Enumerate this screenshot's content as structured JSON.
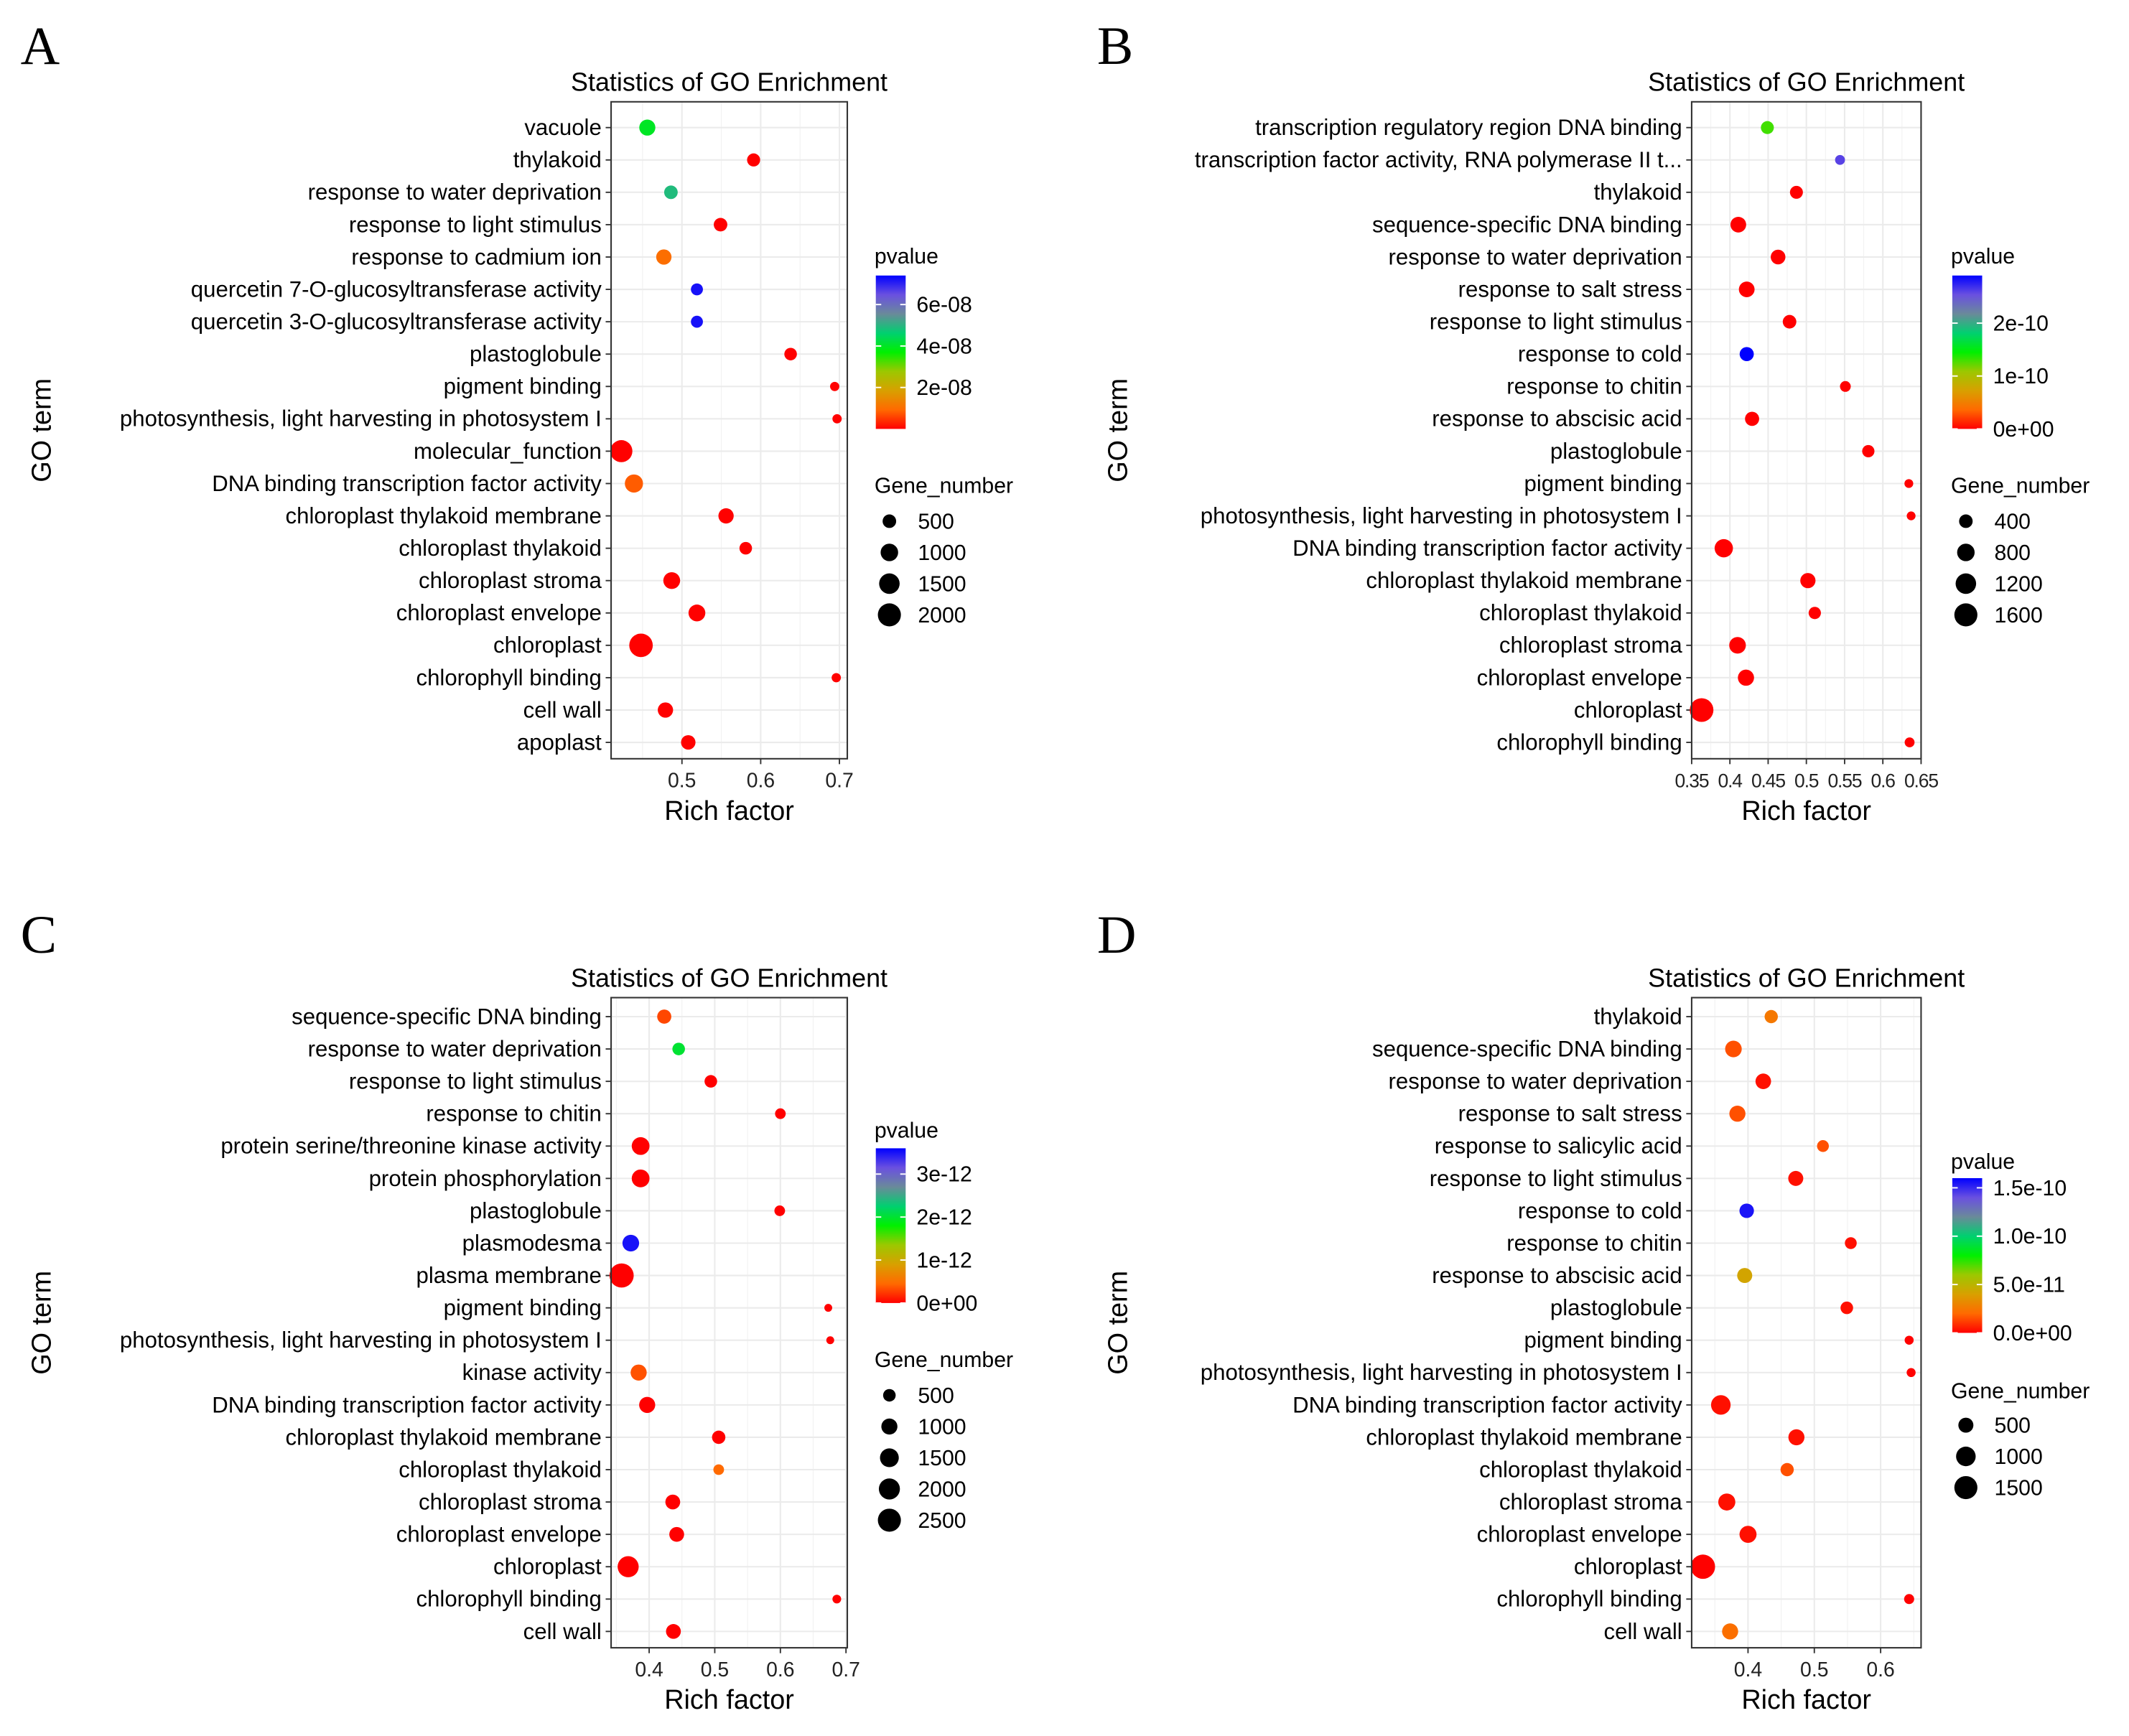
{
  "color_scale": [
    "#FF0000",
    "#FF6A00",
    "#D8A000",
    "#9CC800",
    "#00F000",
    "#00D070",
    "#6A8A9A",
    "#6A50E0",
    "#0000FF"
  ],
  "chart_data": [
    {
      "type": "scatter",
      "panel_label": "A",
      "title": "Statistics of GO Enrichment",
      "xlabel": "Rich factor",
      "ylabel": "GO term",
      "xlim": [
        0.41,
        0.71
      ],
      "xticks": [
        {
          "v": 0.5,
          "label": "0.5"
        },
        {
          "v": 0.6,
          "label": "0.6"
        },
        {
          "v": 0.7,
          "label": "0.7"
        }
      ],
      "grid": true,
      "color_legend": {
        "title": "pvalue",
        "range": [
          0,
          7.4e-08
        ],
        "ticks": [
          {
            "v": 2e-08,
            "label": "2e-08"
          },
          {
            "v": 4e-08,
            "label": "4e-08"
          },
          {
            "v": 6e-08,
            "label": "6e-08"
          }
        ]
      },
      "size_legend": {
        "title": "Gene_number",
        "values": [
          {
            "v": 500,
            "label": "500"
          },
          {
            "v": 1000,
            "label": "1000"
          },
          {
            "v": 1500,
            "label": "1500"
          },
          {
            "v": 2000,
            "label": "2000"
          }
        ]
      },
      "points": [
        {
          "term": "vacuole",
          "x": 0.456,
          "genes": 800,
          "pvalue": 4e-08
        },
        {
          "term": "thylakoid",
          "x": 0.591,
          "genes": 450,
          "pvalue": 1e-10
        },
        {
          "term": "response to water deprivation",
          "x": 0.486,
          "genes": 500,
          "pvalue": 4.9e-08
        },
        {
          "term": "response to light stimulus",
          "x": 0.549,
          "genes": 500,
          "pvalue": 1e-10
        },
        {
          "term": "response to cadmium ion",
          "x": 0.477,
          "genes": 700,
          "pvalue": 1e-08
        },
        {
          "term": "quercetin 7-O-glucosyltransferase activity",
          "x": 0.519,
          "genes": 350,
          "pvalue": 7.2e-08
        },
        {
          "term": "quercetin 3-O-glucosyltransferase activity",
          "x": 0.519,
          "genes": 350,
          "pvalue": 7.2e-08
        },
        {
          "term": "plastoglobule",
          "x": 0.638,
          "genes": 400,
          "pvalue": 1e-10
        },
        {
          "term": "pigment binding",
          "x": 0.694,
          "genes": 150,
          "pvalue": 1e-10
        },
        {
          "term": "photosynthesis, light harvesting in photosystem I",
          "x": 0.697,
          "genes": 150,
          "pvalue": 1e-10
        },
        {
          "term": "molecular_function",
          "x": 0.423,
          "genes": 1800,
          "pvalue": 1e-10
        },
        {
          "term": "DNA binding transcription factor activity",
          "x": 0.439,
          "genes": 1100,
          "pvalue": 8e-09
        },
        {
          "term": "chloroplast thylakoid membrane",
          "x": 0.556,
          "genes": 700,
          "pvalue": 1e-10
        },
        {
          "term": "chloroplast thylakoid",
          "x": 0.581,
          "genes": 400,
          "pvalue": 1e-10
        },
        {
          "term": "chloroplast stroma",
          "x": 0.487,
          "genes": 900,
          "pvalue": 1e-10
        },
        {
          "term": "chloroplast envelope",
          "x": 0.519,
          "genes": 900,
          "pvalue": 1e-10
        },
        {
          "term": "chloroplast",
          "x": 0.448,
          "genes": 2100,
          "pvalue": 1e-10
        },
        {
          "term": "chlorophyll binding",
          "x": 0.696,
          "genes": 150,
          "pvalue": 1e-10
        },
        {
          "term": "cell wall",
          "x": 0.479,
          "genes": 700,
          "pvalue": 1e-10
        },
        {
          "term": "apoplast",
          "x": 0.508,
          "genes": 600,
          "pvalue": 1e-10
        }
      ]
    },
    {
      "type": "scatter",
      "panel_label": "B",
      "title": "Statistics of GO Enrichment",
      "xlabel": "Rich factor",
      "ylabel": "GO term",
      "xlim": [
        0.35,
        0.65
      ],
      "xticks": [
        {
          "v": 0.35,
          "label": "0.35"
        },
        {
          "v": 0.4,
          "label": "0.4"
        },
        {
          "v": 0.45,
          "label": "0.45"
        },
        {
          "v": 0.5,
          "label": "0.5"
        },
        {
          "v": 0.55,
          "label": "0.55"
        },
        {
          "v": 0.6,
          "label": "0.6"
        },
        {
          "v": 0.65,
          "label": "0.65"
        }
      ],
      "grid": true,
      "color_legend": {
        "title": "pvalue",
        "range": [
          0,
          2.9e-10
        ],
        "ticks": [
          {
            "v": 0,
            "label": "0e+00"
          },
          {
            "v": 1e-10,
            "label": "1e-10"
          },
          {
            "v": 2e-10,
            "label": "2e-10"
          }
        ]
      },
      "size_legend": {
        "title": "Gene_number",
        "values": [
          {
            "v": 400,
            "label": "400"
          },
          {
            "v": 800,
            "label": "800"
          },
          {
            "v": 1200,
            "label": "1200"
          },
          {
            "v": 1600,
            "label": "1600"
          }
        ]
      },
      "points": [
        {
          "term": "transcription regulatory region DNA binding",
          "x": 0.449,
          "genes": 350,
          "pvalue": 1.3e-10
        },
        {
          "term": "transcription factor activity, RNA polymerase II t...",
          "x": 0.544,
          "genes": 150,
          "pvalue": 2.6e-10
        },
        {
          "term": "thylakoid",
          "x": 0.487,
          "genes": 350,
          "pvalue": 1e-13
        },
        {
          "term": "sequence-specific DNA binding",
          "x": 0.411,
          "genes": 600,
          "pvalue": 1e-13
        },
        {
          "term": "response to water deprivation",
          "x": 0.463,
          "genes": 500,
          "pvalue": 1e-13
        },
        {
          "term": "response to salt stress",
          "x": 0.422,
          "genes": 600,
          "pvalue": 1e-13
        },
        {
          "term": "response to light stimulus",
          "x": 0.478,
          "genes": 400,
          "pvalue": 1e-13
        },
        {
          "term": "response to cold",
          "x": 0.422,
          "genes": 450,
          "pvalue": 2.9e-10
        },
        {
          "term": "response to chitin",
          "x": 0.551,
          "genes": 200,
          "pvalue": 1e-13
        },
        {
          "term": "response to abscisic acid",
          "x": 0.429,
          "genes": 450,
          "pvalue": 1e-13
        },
        {
          "term": "plastoglobule",
          "x": 0.581,
          "genes": 300,
          "pvalue": 1e-13
        },
        {
          "term": "pigment binding",
          "x": 0.634,
          "genes": 100,
          "pvalue": 1e-13
        },
        {
          "term": "photosynthesis, light harvesting in photosystem I",
          "x": 0.637,
          "genes": 100,
          "pvalue": 1e-13
        },
        {
          "term": "DNA binding transcription factor activity",
          "x": 0.392,
          "genes": 900,
          "pvalue": 1e-13
        },
        {
          "term": "chloroplast thylakoid membrane",
          "x": 0.502,
          "genes": 550,
          "pvalue": 1e-13
        },
        {
          "term": "chloroplast thylakoid",
          "x": 0.511,
          "genes": 300,
          "pvalue": 1e-13
        },
        {
          "term": "chloroplast stroma",
          "x": 0.41,
          "genes": 700,
          "pvalue": 1e-13
        },
        {
          "term": "chloroplast envelope",
          "x": 0.421,
          "genes": 650,
          "pvalue": 1e-13
        },
        {
          "term": "chloroplast",
          "x": 0.363,
          "genes": 1700,
          "pvalue": 1e-13
        },
        {
          "term": "chlorophyll binding",
          "x": 0.635,
          "genes": 150,
          "pvalue": 1e-13
        }
      ]
    },
    {
      "type": "scatter",
      "panel_label": "C",
      "title": "Statistics of GO Enrichment",
      "xlabel": "Rich factor",
      "ylabel": "GO term",
      "xlim": [
        0.342,
        0.702
      ],
      "xticks": [
        {
          "v": 0.4,
          "label": "0.4"
        },
        {
          "v": 0.5,
          "label": "0.5"
        },
        {
          "v": 0.6,
          "label": "0.6"
        },
        {
          "v": 0.7,
          "label": "0.7"
        }
      ],
      "grid": true,
      "color_legend": {
        "title": "pvalue",
        "range": [
          0,
          3.6e-12
        ],
        "ticks": [
          {
            "v": 0,
            "label": "0e+00"
          },
          {
            "v": 1e-12,
            "label": "1e-12"
          },
          {
            "v": 2e-12,
            "label": "2e-12"
          },
          {
            "v": 3e-12,
            "label": "3e-12"
          }
        ]
      },
      "size_legend": {
        "title": "Gene_number",
        "values": [
          {
            "v": 500,
            "label": "500"
          },
          {
            "v": 1000,
            "label": "1000"
          },
          {
            "v": 1500,
            "label": "1500"
          },
          {
            "v": 2000,
            "label": "2000"
          },
          {
            "v": 2500,
            "label": "2500"
          }
        ]
      },
      "points": [
        {
          "term": "sequence-specific DNA binding",
          "x": 0.423,
          "genes": 700,
          "pvalue": 3e-13
        },
        {
          "term": "response to water deprivation",
          "x": 0.445,
          "genes": 500,
          "pvalue": 2e-12
        },
        {
          "term": "response to light stimulus",
          "x": 0.494,
          "genes": 500,
          "pvalue": 1e-15
        },
        {
          "term": "response to chitin",
          "x": 0.6,
          "genes": 300,
          "pvalue": 1e-15
        },
        {
          "term": "protein serine/threonine kinase activity",
          "x": 0.387,
          "genes": 1300,
          "pvalue": 1e-15
        },
        {
          "term": "protein phosphorylation",
          "x": 0.387,
          "genes": 1300,
          "pvalue": 1e-15
        },
        {
          "term": "plastoglobule",
          "x": 0.599,
          "genes": 300,
          "pvalue": 1e-15
        },
        {
          "term": "plasmodesma",
          "x": 0.372,
          "genes": 1100,
          "pvalue": 3.5e-12
        },
        {
          "term": "plasma membrane",
          "x": 0.358,
          "genes": 2800,
          "pvalue": 1e-15
        },
        {
          "term": "pigment binding",
          "x": 0.673,
          "genes": 100,
          "pvalue": 1e-15
        },
        {
          "term": "photosynthesis, light harvesting in photosystem I",
          "x": 0.676,
          "genes": 100,
          "pvalue": 1e-15
        },
        {
          "term": "kinase activity",
          "x": 0.384,
          "genes": 1000,
          "pvalue": 3.5e-13
        },
        {
          "term": "DNA binding transcription factor activity",
          "x": 0.397,
          "genes": 1000,
          "pvalue": 1e-15
        },
        {
          "term": "chloroplast thylakoid membrane",
          "x": 0.506,
          "genes": 600,
          "pvalue": 1e-15
        },
        {
          "term": "chloroplast thylakoid",
          "x": 0.506,
          "genes": 300,
          "pvalue": 4.5e-13
        },
        {
          "term": "chloroplast stroma",
          "x": 0.436,
          "genes": 800,
          "pvalue": 1e-15
        },
        {
          "term": "chloroplast envelope",
          "x": 0.442,
          "genes": 800,
          "pvalue": 1e-15
        },
        {
          "term": "chloroplast",
          "x": 0.368,
          "genes": 2000,
          "pvalue": 1e-15
        },
        {
          "term": "chlorophyll binding",
          "x": 0.686,
          "genes": 150,
          "pvalue": 1e-15
        },
        {
          "term": "cell wall",
          "x": 0.437,
          "genes": 800,
          "pvalue": 1e-15
        }
      ]
    },
    {
      "type": "scatter",
      "panel_label": "D",
      "title": "Statistics of GO Enrichment",
      "xlabel": "Rich factor",
      "ylabel": "GO term",
      "xlim": [
        0.315,
        0.661
      ],
      "xticks": [
        {
          "v": 0.4,
          "label": "0.4"
        },
        {
          "v": 0.5,
          "label": "0.5"
        },
        {
          "v": 0.6,
          "label": "0.6"
        }
      ],
      "grid": true,
      "color_legend": {
        "title": "pvalue",
        "range": [
          0,
          1.6e-10
        ],
        "ticks": [
          {
            "v": 0,
            "label": "0.0e+00"
          },
          {
            "v": 5e-11,
            "label": "5.0e-11"
          },
          {
            "v": 1e-10,
            "label": "1.0e-10"
          },
          {
            "v": 1.5e-10,
            "label": "1.5e-10"
          }
        ]
      },
      "size_legend": {
        "title": "Gene_number",
        "values": [
          {
            "v": 500,
            "label": "500"
          },
          {
            "v": 1000,
            "label": "1000"
          },
          {
            "v": 1500,
            "label": "1500"
          }
        ]
      },
      "points": [
        {
          "term": "thylakoid",
          "x": 0.435,
          "genes": 350,
          "pvalue": 2.5e-11
        },
        {
          "term": "sequence-specific DNA binding",
          "x": 0.378,
          "genes": 650,
          "pvalue": 1.5e-11
        },
        {
          "term": "response to water deprivation",
          "x": 0.423,
          "genes": 550,
          "pvalue": 3e-12
        },
        {
          "term": "response to salt stress",
          "x": 0.384,
          "genes": 600,
          "pvalue": 1.5e-11
        },
        {
          "term": "response to salicylic acid",
          "x": 0.513,
          "genes": 250,
          "pvalue": 1.5e-11
        },
        {
          "term": "response to light stimulus",
          "x": 0.472,
          "genes": 500,
          "pvalue": 3e-12
        },
        {
          "term": "response to cold",
          "x": 0.398,
          "genes": 450,
          "pvalue": 1.55e-10
        },
        {
          "term": "response to chitin",
          "x": 0.555,
          "genes": 250,
          "pvalue": 3e-12
        },
        {
          "term": "response to abscisic acid",
          "x": 0.395,
          "genes": 500,
          "pvalue": 4.2e-11
        },
        {
          "term": "plastoglobule",
          "x": 0.549,
          "genes": 300,
          "pvalue": 3e-12
        },
        {
          "term": "pigment binding",
          "x": 0.643,
          "genes": 100,
          "pvalue": 1e-13
        },
        {
          "term": "photosynthesis, light harvesting in photosystem I",
          "x": 0.646,
          "genes": 100,
          "pvalue": 1e-13
        },
        {
          "term": "DNA binding transcription factor activity",
          "x": 0.359,
          "genes": 1000,
          "pvalue": 3e-12
        },
        {
          "term": "chloroplast thylakoid membrane",
          "x": 0.473,
          "genes": 600,
          "pvalue": 3e-12
        },
        {
          "term": "chloroplast thylakoid",
          "x": 0.459,
          "genes": 350,
          "pvalue": 1.5e-11
        },
        {
          "term": "chloroplast stroma",
          "x": 0.368,
          "genes": 700,
          "pvalue": 3e-12
        },
        {
          "term": "chloroplast envelope",
          "x": 0.4,
          "genes": 700,
          "pvalue": 3e-12
        },
        {
          "term": "chloroplast",
          "x": 0.332,
          "genes": 1700,
          "pvalue": 1e-13
        },
        {
          "term": "chlorophyll binding",
          "x": 0.643,
          "genes": 150,
          "pvalue": 1e-13
        },
        {
          "term": "cell wall",
          "x": 0.373,
          "genes": 600,
          "pvalue": 2.2e-11
        }
      ]
    }
  ]
}
